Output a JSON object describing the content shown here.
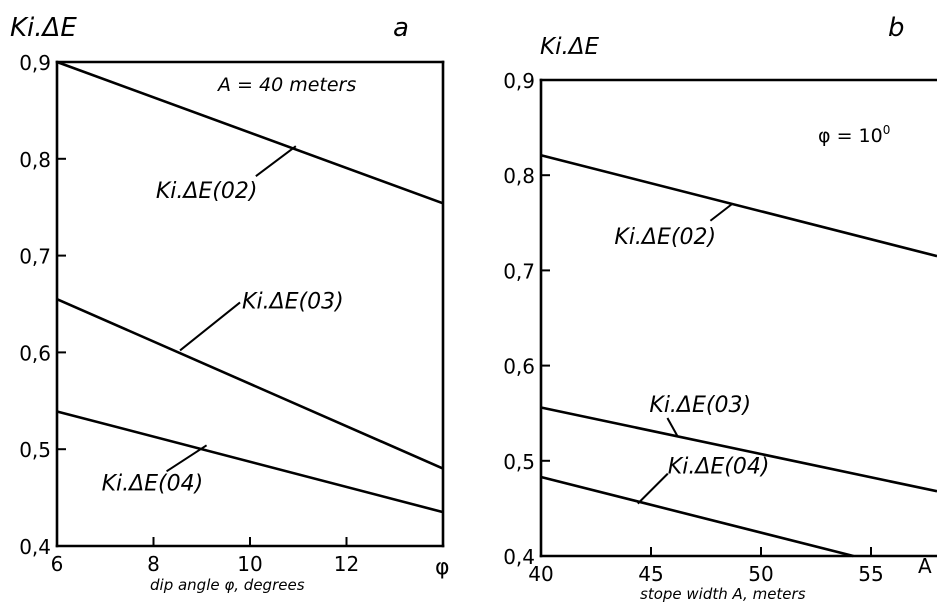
{
  "chart_data": [
    {
      "type": "line",
      "panel_letter": "a",
      "ylabel": "Ki.ΔE",
      "xlabel": "dip angle φ, degrees",
      "x_axis_symbol": "φ",
      "annotation": "A = 40 meters",
      "xlim": [
        6,
        14
      ],
      "ylim": [
        0.4,
        0.9
      ],
      "xticks": [
        6,
        8,
        10,
        12
      ],
      "xtick_labels": [
        "6",
        "8",
        "10",
        "12"
      ],
      "yticks": [
        0.4,
        0.5,
        0.6,
        0.7,
        0.8,
        0.9
      ],
      "ytick_labels": [
        "0,4",
        "0,5",
        "0,6",
        "0,7",
        "0,8",
        "0,9"
      ],
      "grid": false,
      "series": [
        {
          "name": "Ki.ΔE(02)",
          "x": [
            6,
            14
          ],
          "y": [
            0.9,
            0.754
          ],
          "label_pos": [
            10.95,
            0.813
          ]
        },
        {
          "name": "Ki.ΔE(03)",
          "x": [
            6,
            14
          ],
          "y": [
            0.655,
            0.48
          ],
          "label_pos": [
            8.55,
            0.602
          ]
        },
        {
          "name": "Ki.ΔE(04)",
          "x": [
            6,
            14
          ],
          "y": [
            0.539,
            0.435
          ],
          "label_pos": [
            9.1,
            0.504
          ]
        }
      ]
    },
    {
      "type": "line",
      "panel_letter": "b",
      "ylabel": "Ki.ΔE",
      "xlabel": "stope width A, meters",
      "x_axis_symbol": "A",
      "annotation_main": "φ = 10",
      "annotation_sup": "0",
      "xlim": [
        40,
        58
      ],
      "ylim": [
        0.4,
        0.9
      ],
      "xticks": [
        40,
        45,
        50,
        55
      ],
      "xtick_labels": [
        "40",
        "45",
        "50",
        "55"
      ],
      "yticks": [
        0.4,
        0.5,
        0.6,
        0.7,
        0.8,
        0.9
      ],
      "ytick_labels": [
        "0,4",
        "0,5",
        "0,6",
        "0,7",
        "0,8",
        "0,9"
      ],
      "grid": false,
      "series": [
        {
          "name": "Ki.ΔE(02)",
          "x": [
            40,
            58
          ],
          "y": [
            0.821,
            0.715
          ],
          "label_pos": [
            48.7,
            0.77
          ]
        },
        {
          "name": "Ki.ΔE(03)",
          "x": [
            40,
            58
          ],
          "y": [
            0.556,
            0.468
          ],
          "label_pos": [
            46.2,
            0.526
          ]
        },
        {
          "name": "Ki.ΔE(04)",
          "x": [
            40,
            54.2
          ],
          "y": [
            0.483,
            0.4
          ],
          "label_pos": [
            44.4,
            0.455
          ]
        }
      ]
    }
  ]
}
